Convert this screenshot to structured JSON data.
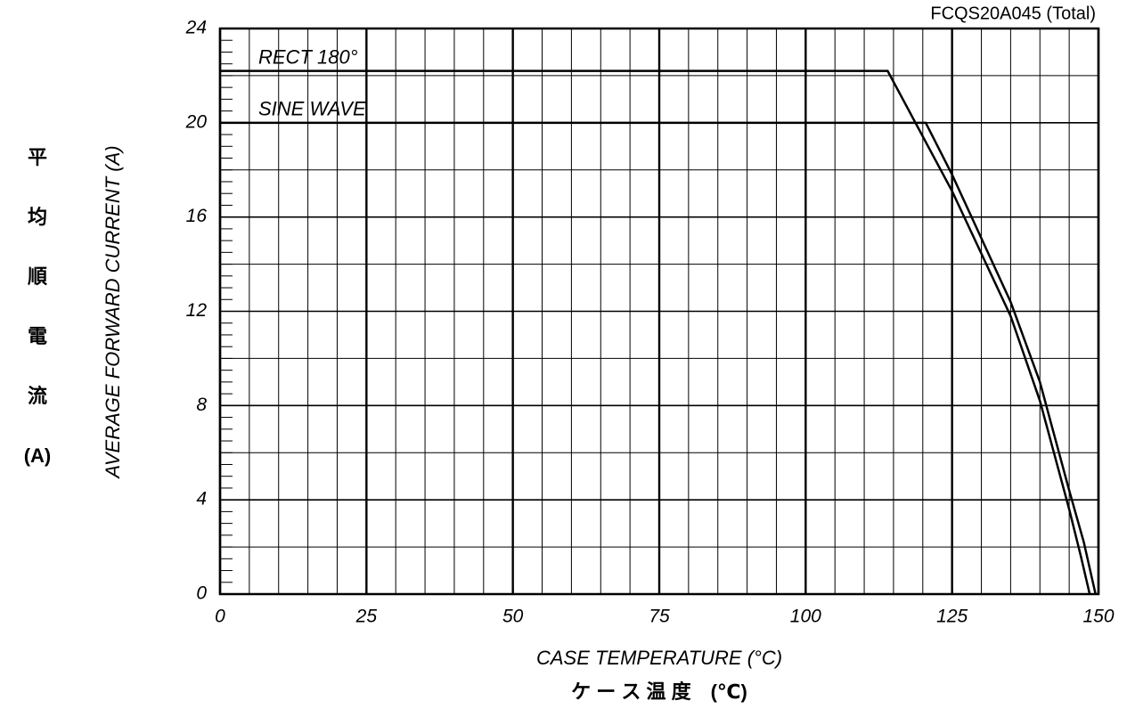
{
  "chart_data": {
    "type": "line",
    "title": "FCQS20A045 (Total)",
    "xlabel": "CASE TEMPERATURE (°C)",
    "xlabel_jp": "ケ ー ス 温 度　(℃)",
    "ylabel": "AVERAGE FORWARD CURRENT (A)",
    "ylabel_jp": [
      "平",
      "均",
      "順",
      "電",
      "流",
      "(A)"
    ],
    "xlim": [
      0,
      150
    ],
    "xticks": [
      0,
      25,
      50,
      75,
      100,
      125,
      150
    ],
    "ylim": [
      0,
      24
    ],
    "yticks": [
      0,
      4,
      8,
      12,
      16,
      20,
      24
    ],
    "grid": {
      "x_step": 5,
      "y_step": 2,
      "x_major_step": 25
    },
    "series": [
      {
        "name": "RECT 180°",
        "color": "#000000",
        "x": [
          0,
          114,
          125,
          135,
          140,
          145,
          147,
          148.5
        ],
        "values": [
          22.2,
          22.2,
          17.1,
          11.8,
          8.2,
          3.6,
          1.6,
          0
        ]
      },
      {
        "name": "SINE WAVE",
        "color": "#000000",
        "x": [
          0,
          120.5,
          125,
          135,
          140,
          145,
          147.5,
          149.5
        ],
        "values": [
          20,
          20,
          17.8,
          12.4,
          9,
          4.4,
          2.2,
          0
        ]
      }
    ]
  }
}
